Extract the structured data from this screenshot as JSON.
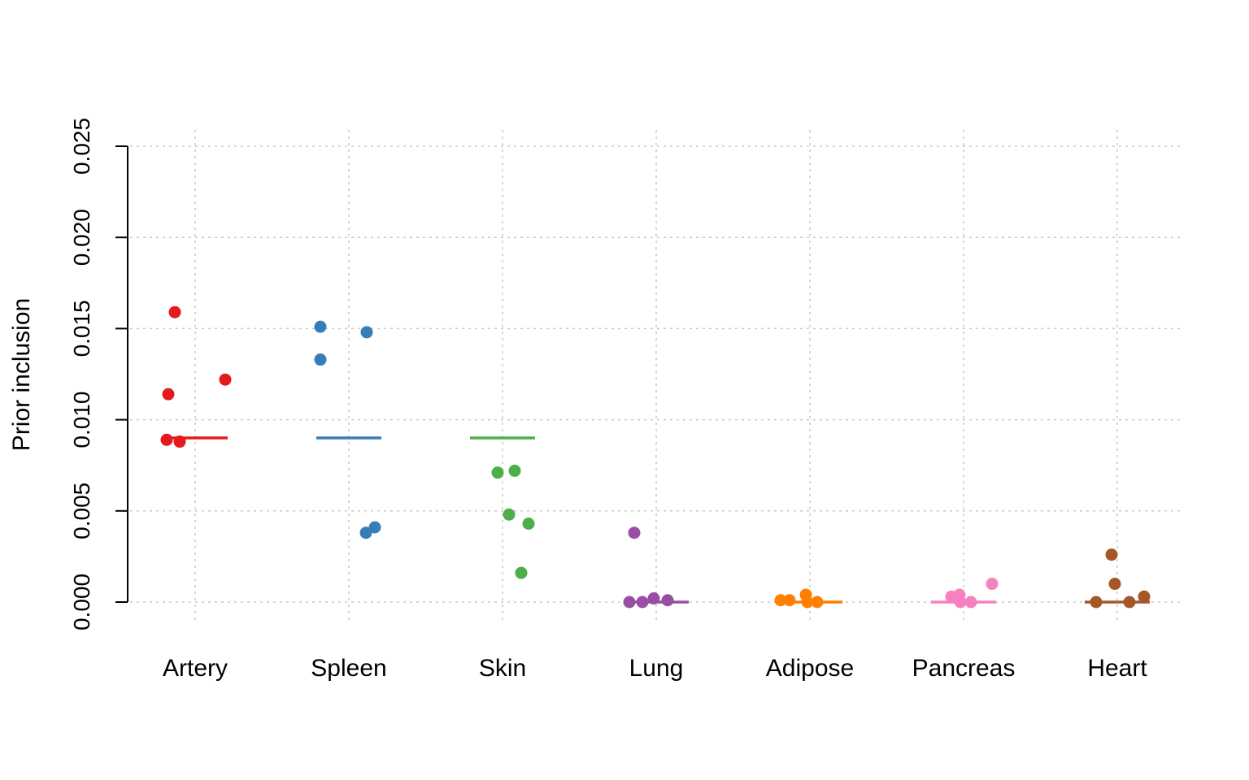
{
  "chart_data": {
    "type": "scatter",
    "title": "",
    "xlabel": "",
    "ylabel": "Prior inclusion",
    "ylim": [
      0,
      0.025
    ],
    "y_ticks": [
      "0.000",
      "0.005",
      "0.010",
      "0.015",
      "0.020",
      "0.025"
    ],
    "y_tick_values": [
      0,
      0.005,
      0.01,
      0.015,
      0.02,
      0.025
    ],
    "grid": true,
    "categories": [
      "Artery",
      "Spleen",
      "Skin",
      "Lung",
      "Adipose",
      "Pancreas",
      "Heart"
    ],
    "series": [
      {
        "category": "Artery",
        "color": "#e41a1c",
        "reference_line": 0.009,
        "values": [
          0.0159,
          0.0114,
          0.0122,
          0.0089,
          0.0088
        ]
      },
      {
        "category": "Spleen",
        "color": "#377eb8",
        "reference_line": 0.009,
        "values": [
          0.0151,
          0.0133,
          0.0148,
          0.0038,
          0.0041
        ]
      },
      {
        "category": "Skin",
        "color": "#4daf4a",
        "reference_line": 0.009,
        "values": [
          0.0071,
          0.0072,
          0.0048,
          0.0043,
          0.0016
        ]
      },
      {
        "category": "Lung",
        "color": "#984ea3",
        "reference_line": 0.0,
        "values": [
          0.0038,
          0.0,
          0.0,
          0.0002,
          0.0001
        ]
      },
      {
        "category": "Adipose",
        "color": "#ff7f00",
        "reference_line": 0.0,
        "values": [
          0.0001,
          0.0001,
          0.0004,
          0.0,
          0.0
        ]
      },
      {
        "category": "Pancreas",
        "color": "#f781bf",
        "reference_line": 0.0,
        "values": [
          0.0003,
          0.0004,
          0.0,
          0.0,
          0.001
        ]
      },
      {
        "category": "Heart",
        "color": "#a65628",
        "reference_line": 0.0,
        "values": [
          0.0026,
          0.001,
          0.0,
          0.0,
          0.0003
        ]
      }
    ]
  }
}
